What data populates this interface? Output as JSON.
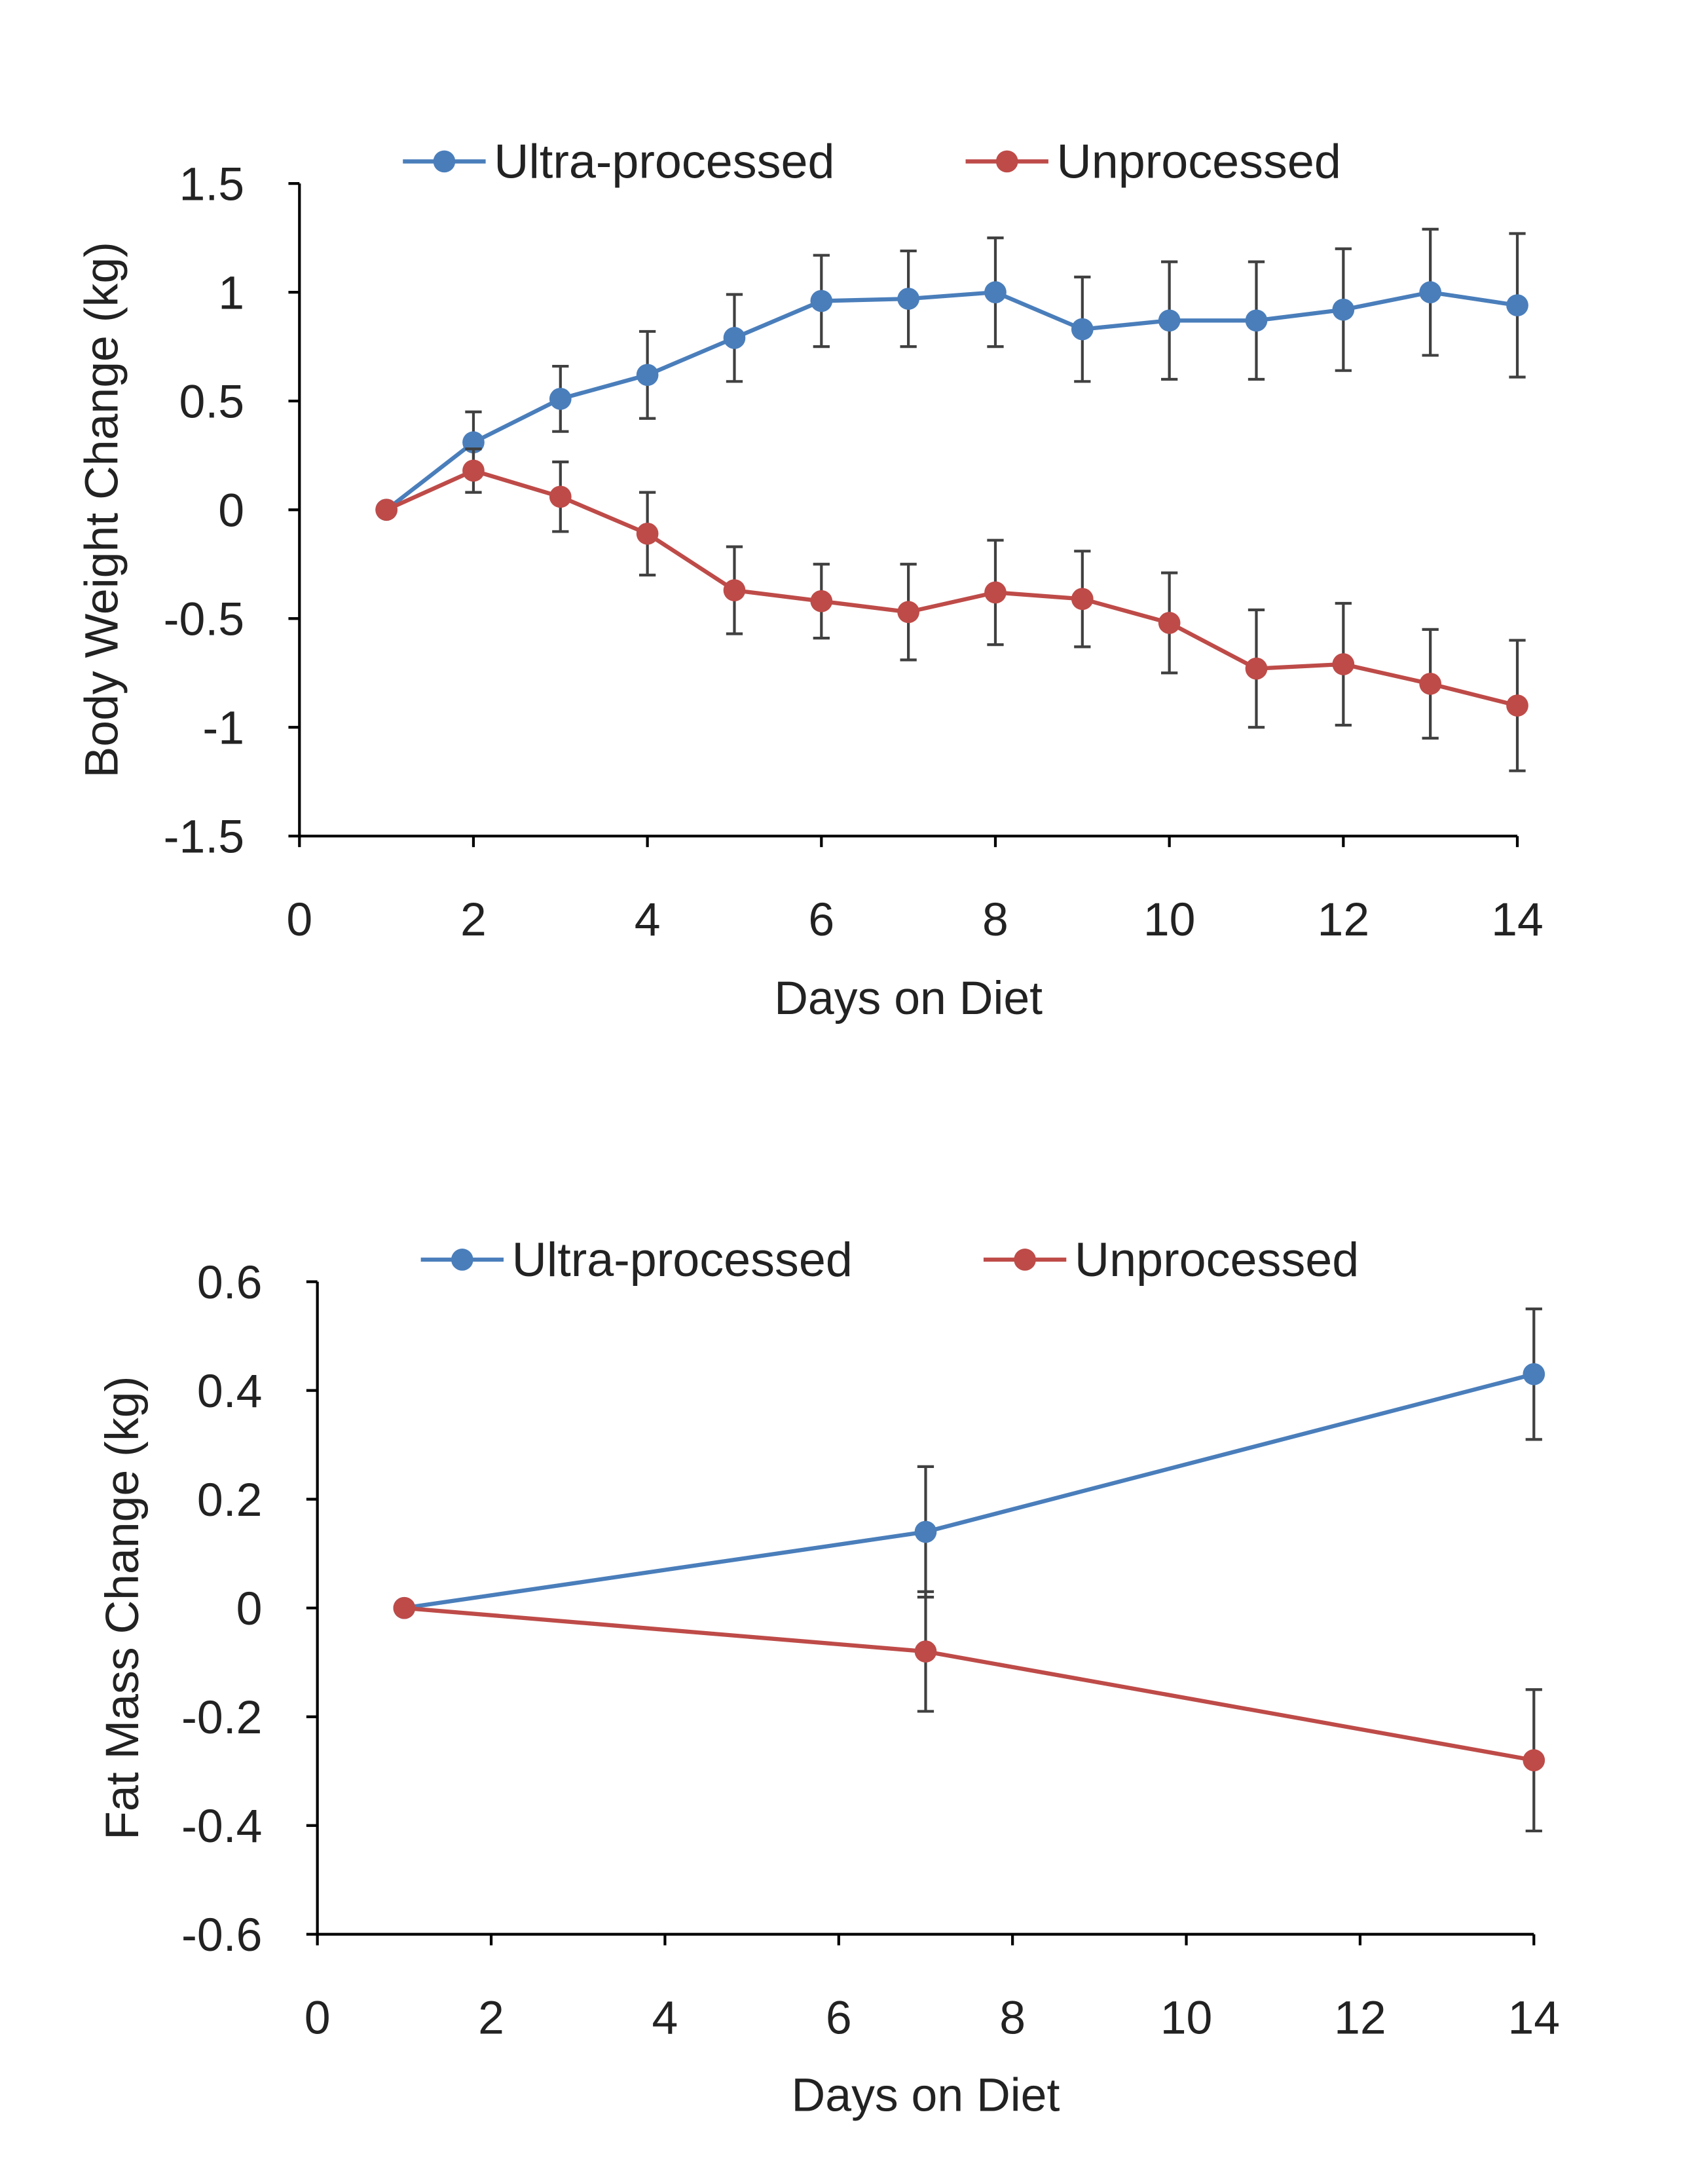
{
  "colors": {
    "ultra": "#4a7ebb",
    "unprocessed": "#be4b48",
    "axis": "#000000",
    "errorbar": "#404040"
  },
  "chart_data": [
    {
      "type": "line",
      "title": "",
      "xlabel": "Days on Diet",
      "ylabel": "Body Weight Change (kg)",
      "xlim": [
        0,
        14
      ],
      "ylim": [
        -1.5,
        1.5
      ],
      "xticks": [
        0,
        2,
        4,
        6,
        8,
        10,
        12,
        14
      ],
      "yticks": [
        1.5,
        1,
        0.5,
        0,
        -0.5,
        -1,
        -1.5
      ],
      "ytick_labels": [
        "1.5",
        "1",
        "0.5",
        "0",
        "-0.5",
        "-1",
        "-1.5"
      ],
      "grid": false,
      "legend": {
        "placement": "top",
        "entries": [
          "Ultra-processed",
          "Unprocessed"
        ]
      },
      "x": [
        1,
        2,
        3,
        4,
        5,
        6,
        7,
        8,
        9,
        10,
        11,
        12,
        13,
        14
      ],
      "series": [
        {
          "name": "Ultra-processed",
          "color_key": "ultra",
          "values": [
            0,
            0.31,
            0.51,
            0.62,
            0.79,
            0.96,
            0.97,
            1.0,
            0.83,
            0.87,
            0.87,
            0.92,
            1.0,
            0.94
          ],
          "error": [
            0,
            0.14,
            0.15,
            0.2,
            0.2,
            0.21,
            0.22,
            0.25,
            0.24,
            0.27,
            0.27,
            0.28,
            0.29,
            0.33
          ]
        },
        {
          "name": "Unprocessed",
          "color_key": "unprocessed",
          "values": [
            0,
            0.18,
            0.06,
            -0.11,
            -0.37,
            -0.42,
            -0.47,
            -0.38,
            -0.41,
            -0.52,
            -0.73,
            -0.71,
            -0.8,
            -0.9
          ],
          "error": [
            0,
            0.1,
            0.16,
            0.19,
            0.2,
            0.17,
            0.22,
            0.24,
            0.22,
            0.23,
            0.27,
            0.28,
            0.25,
            0.3
          ]
        }
      ]
    },
    {
      "type": "line",
      "title": "",
      "xlabel": "Days on Diet",
      "ylabel": "Fat Mass Change (kg)",
      "xlim": [
        0,
        14
      ],
      "ylim": [
        -0.6,
        0.6
      ],
      "xticks": [
        0,
        2,
        4,
        6,
        8,
        10,
        12,
        14
      ],
      "yticks": [
        0.6,
        0.4,
        0.2,
        0,
        -0.2,
        -0.4,
        -0.6
      ],
      "ytick_labels": [
        "0.6",
        "0.4",
        "0.2",
        "0",
        "-0.2",
        "-0.4",
        "-0.6"
      ],
      "grid": false,
      "legend": {
        "placement": "top",
        "entries": [
          "Ultra-processed",
          "Unprocessed"
        ]
      },
      "x": [
        1,
        7,
        14
      ],
      "series": [
        {
          "name": "Ultra-processed",
          "color_key": "ultra",
          "values": [
            0,
            0.14,
            0.43
          ],
          "error": [
            0,
            0.12,
            0.12
          ]
        },
        {
          "name": "Unprocessed",
          "color_key": "unprocessed",
          "values": [
            0,
            -0.08,
            -0.28
          ],
          "error": [
            0,
            0.11,
            0.13
          ]
        }
      ]
    }
  ]
}
